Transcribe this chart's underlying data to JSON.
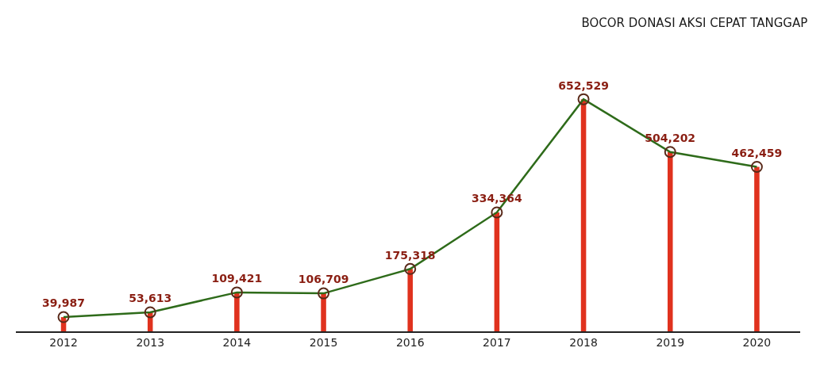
{
  "chart_data": {
    "type": "line",
    "title": "BOCOR DONASI AKSI CEPAT TANGGAP",
    "categories": [
      "2012",
      "2013",
      "2014",
      "2015",
      "2016",
      "2017",
      "2018",
      "2019",
      "2020"
    ],
    "series": [
      {
        "type": "bar",
        "color": "#e0321e",
        "values": [
          39987,
          53613,
          109421,
          106709,
          175318,
          334364,
          652529,
          504202,
          462459
        ]
      },
      {
        "color": "#2e6b1a",
        "values": [
          39987,
          53613,
          109421,
          106709,
          175318,
          334364,
          652529,
          504202,
          462459
        ],
        "value_labels": [
          "39,987",
          "53,613",
          "109,421",
          "106,709",
          "175,318",
          "334,364",
          "652,529",
          "504,202",
          "462,459"
        ]
      }
    ],
    "marker": "circle",
    "line_style": "solid",
    "grid": false
  }
}
